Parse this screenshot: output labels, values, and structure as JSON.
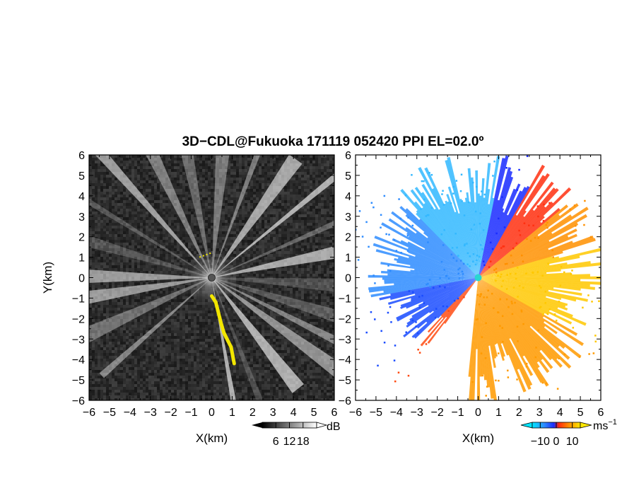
{
  "title": "3D−CDL@Fukuoka 171119 052420 PPI EL=02.0º",
  "colors": {
    "positive": "#ff6a00",
    "negative": "#2a7dff",
    "highlight": "#f2e600",
    "background_left": "#2b2b2b"
  },
  "chart_data": [
    {
      "type": "heatmap",
      "name": "reflectivity-ppi",
      "xlabel": "X(km)",
      "ylabel": "Y(km)",
      "xlim": [
        -6,
        6
      ],
      "ylim": [
        -6,
        6
      ],
      "x_ticks": [
        "−6",
        "−5",
        "−4",
        "−3",
        "−2",
        "−1",
        "0",
        "1",
        "2",
        "3",
        "4",
        "5",
        "6"
      ],
      "y_ticks": [
        "6",
        "5",
        "4",
        "3",
        "2",
        "1",
        "0",
        "−1",
        "−2",
        "−3",
        "−4",
        "−5",
        "−6"
      ],
      "colorbar": {
        "unit": "dB",
        "ticks": [
          "6",
          "12",
          "18"
        ],
        "range": [
          0,
          24
        ]
      }
    },
    {
      "type": "heatmap",
      "name": "doppler-velocity-ppi",
      "xlabel": "X(km)",
      "xlim": [
        -6,
        6
      ],
      "ylim": [
        -6,
        6
      ],
      "x_ticks": [
        "−6",
        "−5",
        "−4",
        "−3",
        "−2",
        "−1",
        "0",
        "1",
        "2",
        "3",
        "4",
        "5",
        "6"
      ],
      "y_ticks": [
        "6",
        "5",
        "4",
        "3",
        "2",
        "1",
        "0",
        "−1",
        "−2",
        "−3",
        "−4",
        "−5",
        "−6"
      ],
      "colorbar": {
        "unit": "ms",
        "unit_exp": "−1",
        "ticks": [
          "−10",
          "0",
          "10"
        ],
        "range": [
          -15,
          15
        ]
      }
    }
  ]
}
